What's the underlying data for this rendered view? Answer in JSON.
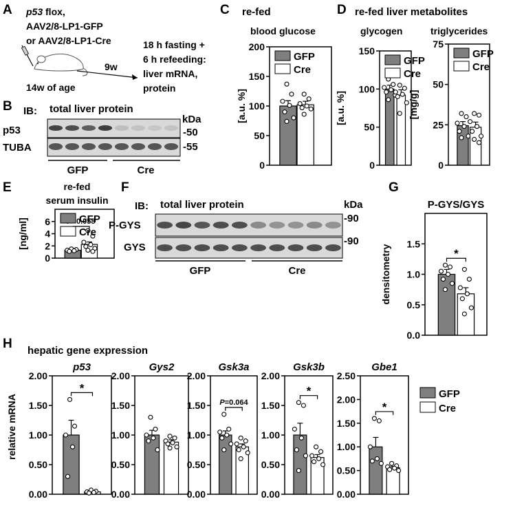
{
  "colors": {
    "gfp": "#7f7f7f",
    "cre": "#ffffff",
    "axis": "#000000",
    "blot_bg": "#d9d9d9",
    "blot_band": "#2a2a2a"
  },
  "panelA": {
    "letter": "A",
    "line1_italic": "p53",
    "line1_rest": " flox,",
    "line2": "AAV2/8-LP1-GFP",
    "line3": "or AAV2/8-LP1-Cre",
    "arrow_label": "9w",
    "age": "14w of age",
    "protocol": [
      "18 h fasting +",
      "6 h refeeding:",
      "liver mRNA,",
      "protein"
    ]
  },
  "panelB": {
    "letter": "B",
    "ib": "IB:",
    "title": "total liver protein",
    "kda": "kDa",
    "rows": [
      "p53",
      "TUBA"
    ],
    "markers": [
      "-50",
      "-55"
    ],
    "groups": [
      "GFP",
      "Cre"
    ]
  },
  "panelF": {
    "letter": "F",
    "ib": "IB:",
    "title": "total liver protein",
    "kda": "kDa",
    "rows": [
      "P-GYS",
      "GYS"
    ],
    "markers": [
      "-90",
      "-90"
    ],
    "groups": [
      "GFP",
      "Cre"
    ]
  },
  "panelC": {
    "letter": "C",
    "heading": "re-fed",
    "subtitle": "blood glucose"
  },
  "panelD": {
    "letter": "D",
    "heading": "re-fed liver metabolites",
    "subtitle_a": "glycogen",
    "subtitle_b": "triglycerides"
  },
  "panelE": {
    "letter": "E",
    "title": [
      "re-fed",
      "serum insulin"
    ]
  },
  "panelG": {
    "letter": "G"
  },
  "panelH": {
    "letter": "H",
    "title": "hepatic gene expression",
    "ylabel": "relative mRNA"
  },
  "legend": {
    "gfp": "GFP",
    "cre": "Cre"
  },
  "chart_data": [
    {
      "id": "glucose",
      "type": "bar",
      "title": "blood glucose",
      "ylabel": "[a.u. %]",
      "ylim": [
        0,
        200
      ],
      "yticks": [
        0,
        50,
        100,
        150,
        200
      ],
      "categories": [
        "GFP",
        "Cre"
      ],
      "legend": "top-right",
      "series": [
        {
          "name": "GFP",
          "mean": 100,
          "sem": 9,
          "points": [
            137,
            120,
            108,
            101,
            90,
            80,
            74
          ]
        },
        {
          "name": "Cre",
          "mean": 102,
          "sem": 6,
          "points": [
            120,
            112,
            104,
            100,
            97,
            95,
            86
          ]
        }
      ]
    },
    {
      "id": "glycogen",
      "type": "bar",
      "title": "glycogen",
      "ylabel": "[a.u. %]",
      "ylim": [
        0,
        150
      ],
      "yticks": [
        0,
        50,
        100,
        150
      ],
      "categories": [
        "GFP",
        "Cre"
      ],
      "legend": "top-right",
      "series": [
        {
          "name": "GFP",
          "mean": 100,
          "sem": 5,
          "points": [
            113,
            106,
            102,
            99,
            96,
            92,
            86
          ]
        },
        {
          "name": "Cre",
          "mean": 92,
          "sem": 7,
          "points": [
            105,
            101,
            96,
            93,
            90,
            82,
            68
          ]
        }
      ]
    },
    {
      "id": "triglycerides",
      "type": "bar",
      "title": "triglycerides",
      "ylabel": "[mg/g]",
      "ylim": [
        0,
        75
      ],
      "yticks": [
        0,
        25,
        50,
        75
      ],
      "categories": [
        "GFP",
        "Cre"
      ],
      "legend": "top-right",
      "series": [
        {
          "name": "GFP",
          "mean": 24.5,
          "sem": 2.5,
          "points": [
            32,
            30,
            26,
            24,
            21,
            18,
            17
          ]
        },
        {
          "name": "Cre",
          "mean": 23.5,
          "sem": 3.2,
          "points": [
            32,
            31,
            27,
            24,
            21,
            18,
            16,
            14
          ]
        }
      ]
    },
    {
      "id": "insulin",
      "type": "bar",
      "title": "serum insulin",
      "ylabel": "[ng/ml]",
      "ylim": [
        0,
        8
      ],
      "yticks": [
        0,
        2,
        4,
        6
      ],
      "categories": [
        "GFP",
        "Cre"
      ],
      "legend": "top-left",
      "annotation": {
        "text": "=0.058",
        "prefix": "P"
      },
      "series": [
        {
          "name": "GFP",
          "mean": 1.3,
          "sem": 0.1,
          "points": [
            1.5,
            1.4,
            1.3,
            1.2,
            1.1
          ]
        },
        {
          "name": "Cre",
          "mean": 2.25,
          "sem": 0.4,
          "points": [
            4.5,
            3.6,
            2.6,
            2.2,
            1.9,
            1.6,
            1.3,
            1.1
          ]
        }
      ]
    },
    {
      "id": "pgys",
      "type": "bar",
      "title": "P-GYS/GYS",
      "ylabel": "densitometry",
      "ylim": [
        0,
        2.0
      ],
      "yticks": [
        0.0,
        0.5,
        1.0,
        1.5
      ],
      "categories": [
        "GFP",
        "Cre"
      ],
      "legend": "none",
      "annotation": {
        "text": "*"
      },
      "series": [
        {
          "name": "GFP",
          "mean": 1.0,
          "sem": 0.08,
          "points": [
            1.15,
            1.12,
            1.05,
            1.0,
            0.92,
            0.85,
            0.75
          ]
        },
        {
          "name": "Cre",
          "mean": 0.68,
          "sem": 0.1,
          "points": [
            1.08,
            0.92,
            0.78,
            0.68,
            0.6,
            0.45,
            0.35
          ]
        }
      ]
    },
    {
      "id": "p53",
      "type": "bar",
      "title": "p53",
      "ylim": [
        0,
        2.0
      ],
      "yticks": [
        0.0,
        0.5,
        1.0,
        1.5,
        2.0
      ],
      "categories": [
        "GFP",
        "Cre"
      ],
      "annotation": {
        "text": "*"
      },
      "series": [
        {
          "name": "GFP",
          "mean": 1.0,
          "sem": 0.25,
          "points": [
            1.6,
            1.15,
            1.0,
            0.8,
            0.3
          ]
        },
        {
          "name": "Cre",
          "mean": 0.04,
          "sem": 0.01,
          "points": [
            0.07,
            0.05,
            0.04,
            0.03,
            0.02
          ]
        }
      ]
    },
    {
      "id": "gys2",
      "type": "bar",
      "title": "Gys2",
      "ylim": [
        0,
        2.0
      ],
      "yticks": [
        0.0,
        0.5,
        1.0,
        1.5,
        2.0
      ],
      "categories": [
        "GFP",
        "Cre"
      ],
      "series": [
        {
          "name": "GFP",
          "mean": 1.0,
          "sem": 0.08,
          "points": [
            1.3,
            1.1,
            1.0,
            0.95,
            0.9,
            0.75
          ]
        },
        {
          "name": "Cre",
          "mean": 0.88,
          "sem": 0.04,
          "points": [
            0.98,
            0.95,
            0.9,
            0.87,
            0.85,
            0.8,
            0.78
          ]
        }
      ]
    },
    {
      "id": "gsk3a",
      "type": "bar",
      "title": "Gsk3a",
      "ylim": [
        0,
        2.0
      ],
      "yticks": [
        0.0,
        0.5,
        1.0,
        1.5,
        2.0
      ],
      "categories": [
        "GFP",
        "Cre"
      ],
      "annotation": {
        "text": "=0.064",
        "prefix": "P"
      },
      "series": [
        {
          "name": "GFP",
          "mean": 1.0,
          "sem": 0.07,
          "points": [
            1.35,
            1.1,
            1.05,
            1.0,
            0.95,
            0.85,
            0.75
          ]
        },
        {
          "name": "Cre",
          "mean": 0.8,
          "sem": 0.05,
          "points": [
            0.95,
            0.9,
            0.85,
            0.8,
            0.75,
            0.7,
            0.6
          ]
        }
      ]
    },
    {
      "id": "gsk3b",
      "type": "bar",
      "title": "Gsk3b",
      "ylim": [
        0,
        2.0
      ],
      "yticks": [
        0.0,
        0.5,
        1.0,
        1.5,
        2.0
      ],
      "categories": [
        "GFP",
        "Cre"
      ],
      "annotation": {
        "text": "*"
      },
      "series": [
        {
          "name": "GFP",
          "mean": 1.0,
          "sem": 0.2,
          "points": [
            1.55,
            1.5,
            1.1,
            0.95,
            0.75,
            0.65,
            0.4
          ]
        },
        {
          "name": "Cre",
          "mean": 0.62,
          "sem": 0.05,
          "points": [
            0.8,
            0.72,
            0.65,
            0.6,
            0.55,
            0.5
          ]
        }
      ]
    },
    {
      "id": "gbe1",
      "type": "bar",
      "title": "Gbe1",
      "ylim": [
        0,
        2.5
      ],
      "yticks": [
        0.0,
        0.5,
        1.0,
        1.5,
        2.0,
        2.5
      ],
      "categories": [
        "GFP",
        "Cre"
      ],
      "annotation": {
        "text": "*"
      },
      "series": [
        {
          "name": "GFP",
          "mean": 1.0,
          "sem": 0.2,
          "points": [
            1.6,
            1.55,
            1.0,
            0.75,
            0.7,
            0.65
          ]
        },
        {
          "name": "Cre",
          "mean": 0.56,
          "sem": 0.03,
          "points": [
            0.65,
            0.6,
            0.58,
            0.55,
            0.52,
            0.5
          ]
        }
      ]
    }
  ]
}
